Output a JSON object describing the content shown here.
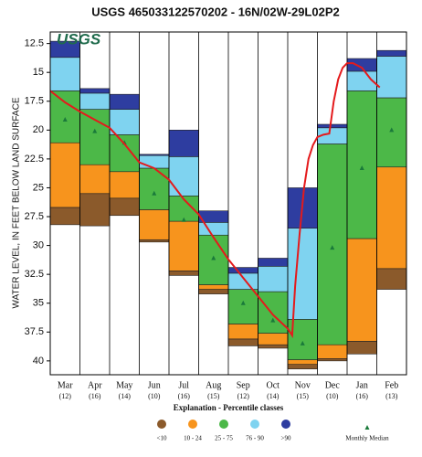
{
  "chart_data": {
    "type": "percentile-bar",
    "title": "USGS 465033122570202 - 16N/02W-29L02P2",
    "logo": "USGS",
    "y_label": "WATER LEVEL, IN FEET BELOW LAND SURFACE",
    "y_inverted": true,
    "ylim": [
      11.5,
      41.2
    ],
    "yticks": [
      12.5,
      15,
      17.5,
      20,
      22.5,
      25,
      27.5,
      30,
      32.5,
      35,
      37.5,
      40
    ],
    "categories": [
      "Mar",
      "Apr",
      "May",
      "Jun",
      "Jul",
      "Aug",
      "Sep",
      "Oct",
      "Nov",
      "Dec",
      "Jan",
      "Feb"
    ],
    "sample_counts": [
      "(12)",
      "(16)",
      "(14)",
      "(10)",
      "(16)",
      "(15)",
      "(12)",
      "(14)",
      "(15)",
      "(10)",
      "(16)",
      "(13)"
    ],
    "legend_title": "Explanation - Percentile classes",
    "series": [
      {
        "name": "<10",
        "color": "#8b5a2b",
        "values": [
          [
            26.7,
            28.2
          ],
          [
            25.5,
            28.3
          ],
          [
            25.9,
            27.4
          ],
          [
            29.5,
            29.7
          ],
          [
            32.2,
            32.6
          ],
          [
            33.8,
            34.2
          ],
          [
            38.1,
            38.7
          ],
          [
            38.6,
            38.9
          ],
          [
            40.3,
            40.7
          ],
          [
            39.8,
            40.0
          ],
          [
            38.3,
            39.4
          ],
          [
            32.0,
            33.8
          ]
        ]
      },
      {
        "name": "10 - 24",
        "color": "#f7941d",
        "values": [
          [
            21.1,
            26.7
          ],
          [
            23.0,
            25.5
          ],
          [
            23.6,
            25.9
          ],
          [
            26.9,
            29.5
          ],
          [
            27.9,
            32.2
          ],
          [
            33.4,
            33.8
          ],
          [
            36.8,
            38.1
          ],
          [
            37.6,
            38.6
          ],
          [
            39.9,
            40.3
          ],
          [
            38.6,
            39.8
          ],
          [
            29.4,
            38.3
          ],
          [
            23.2,
            32.0
          ]
        ]
      },
      {
        "name": "25 - 75",
        "color": "#4cb848",
        "values": [
          [
            16.6,
            21.1
          ],
          [
            18.2,
            23.0
          ],
          [
            20.4,
            23.6
          ],
          [
            23.3,
            26.9
          ],
          [
            25.7,
            27.9
          ],
          [
            29.1,
            33.4
          ],
          [
            33.8,
            36.8
          ],
          [
            34.0,
            37.6
          ],
          [
            36.4,
            39.9
          ],
          [
            21.2,
            38.6
          ],
          [
            16.6,
            29.4
          ],
          [
            17.2,
            23.2
          ]
        ]
      },
      {
        "name": "76 - 90",
        "color": "#7fd3f0",
        "values": [
          [
            13.7,
            16.6
          ],
          [
            16.8,
            18.2
          ],
          [
            18.2,
            20.4
          ],
          [
            22.2,
            23.3
          ],
          [
            22.3,
            25.7
          ],
          [
            28.0,
            29.1
          ],
          [
            32.4,
            33.8
          ],
          [
            31.8,
            34.0
          ],
          [
            28.5,
            36.4
          ],
          [
            19.8,
            21.2
          ],
          [
            14.9,
            16.6
          ],
          [
            13.6,
            17.2
          ]
        ]
      },
      {
        "name": ">90",
        "color": "#2e3da0",
        "values": [
          [
            12.3,
            13.7
          ],
          [
            16.4,
            16.8
          ],
          [
            16.9,
            18.2
          ],
          [
            22.1,
            22.2
          ],
          [
            20.0,
            22.3
          ],
          [
            27.0,
            28.0
          ],
          [
            31.9,
            32.4
          ],
          [
            31.1,
            31.8
          ],
          [
            25.0,
            28.5
          ],
          [
            19.5,
            19.8
          ],
          [
            13.8,
            14.9
          ],
          [
            13.1,
            13.6
          ]
        ]
      }
    ],
    "median": {
      "name": "Monthly Median",
      "color": "#1a7a3a",
      "values": [
        19.1,
        20.1,
        21.1,
        25.5,
        27.8,
        31.1,
        35.0,
        36.5,
        38.5,
        30.2,
        23.3,
        20.0
      ]
    },
    "daily": {
      "color": "#e41a1c",
      "x": [
        0,
        0.5,
        1,
        1.5,
        2,
        2.5,
        3,
        3.5,
        4,
        4.5,
        5,
        5.5,
        6,
        6.5,
        7,
        7.5,
        8,
        8.15,
        8.25,
        8.4,
        8.55,
        8.7,
        8.85,
        9,
        9.2,
        9.4,
        9.55,
        9.7,
        9.85,
        10,
        10.2,
        10.5,
        10.8,
        11.1
      ],
      "values": [
        16.6,
        17.6,
        18.4,
        19.1,
        19.8,
        21.2,
        22.8,
        23.3,
        24.3,
        26.0,
        27.3,
        29.3,
        31.2,
        32.8,
        34.4,
        36.0,
        37.2,
        37.8,
        33.5,
        29.0,
        25.0,
        22.5,
        21.3,
        20.6,
        20.4,
        20.3,
        17.5,
        15.6,
        14.6,
        14.2,
        14.2,
        14.6,
        15.6,
        16.3
      ]
    }
  }
}
